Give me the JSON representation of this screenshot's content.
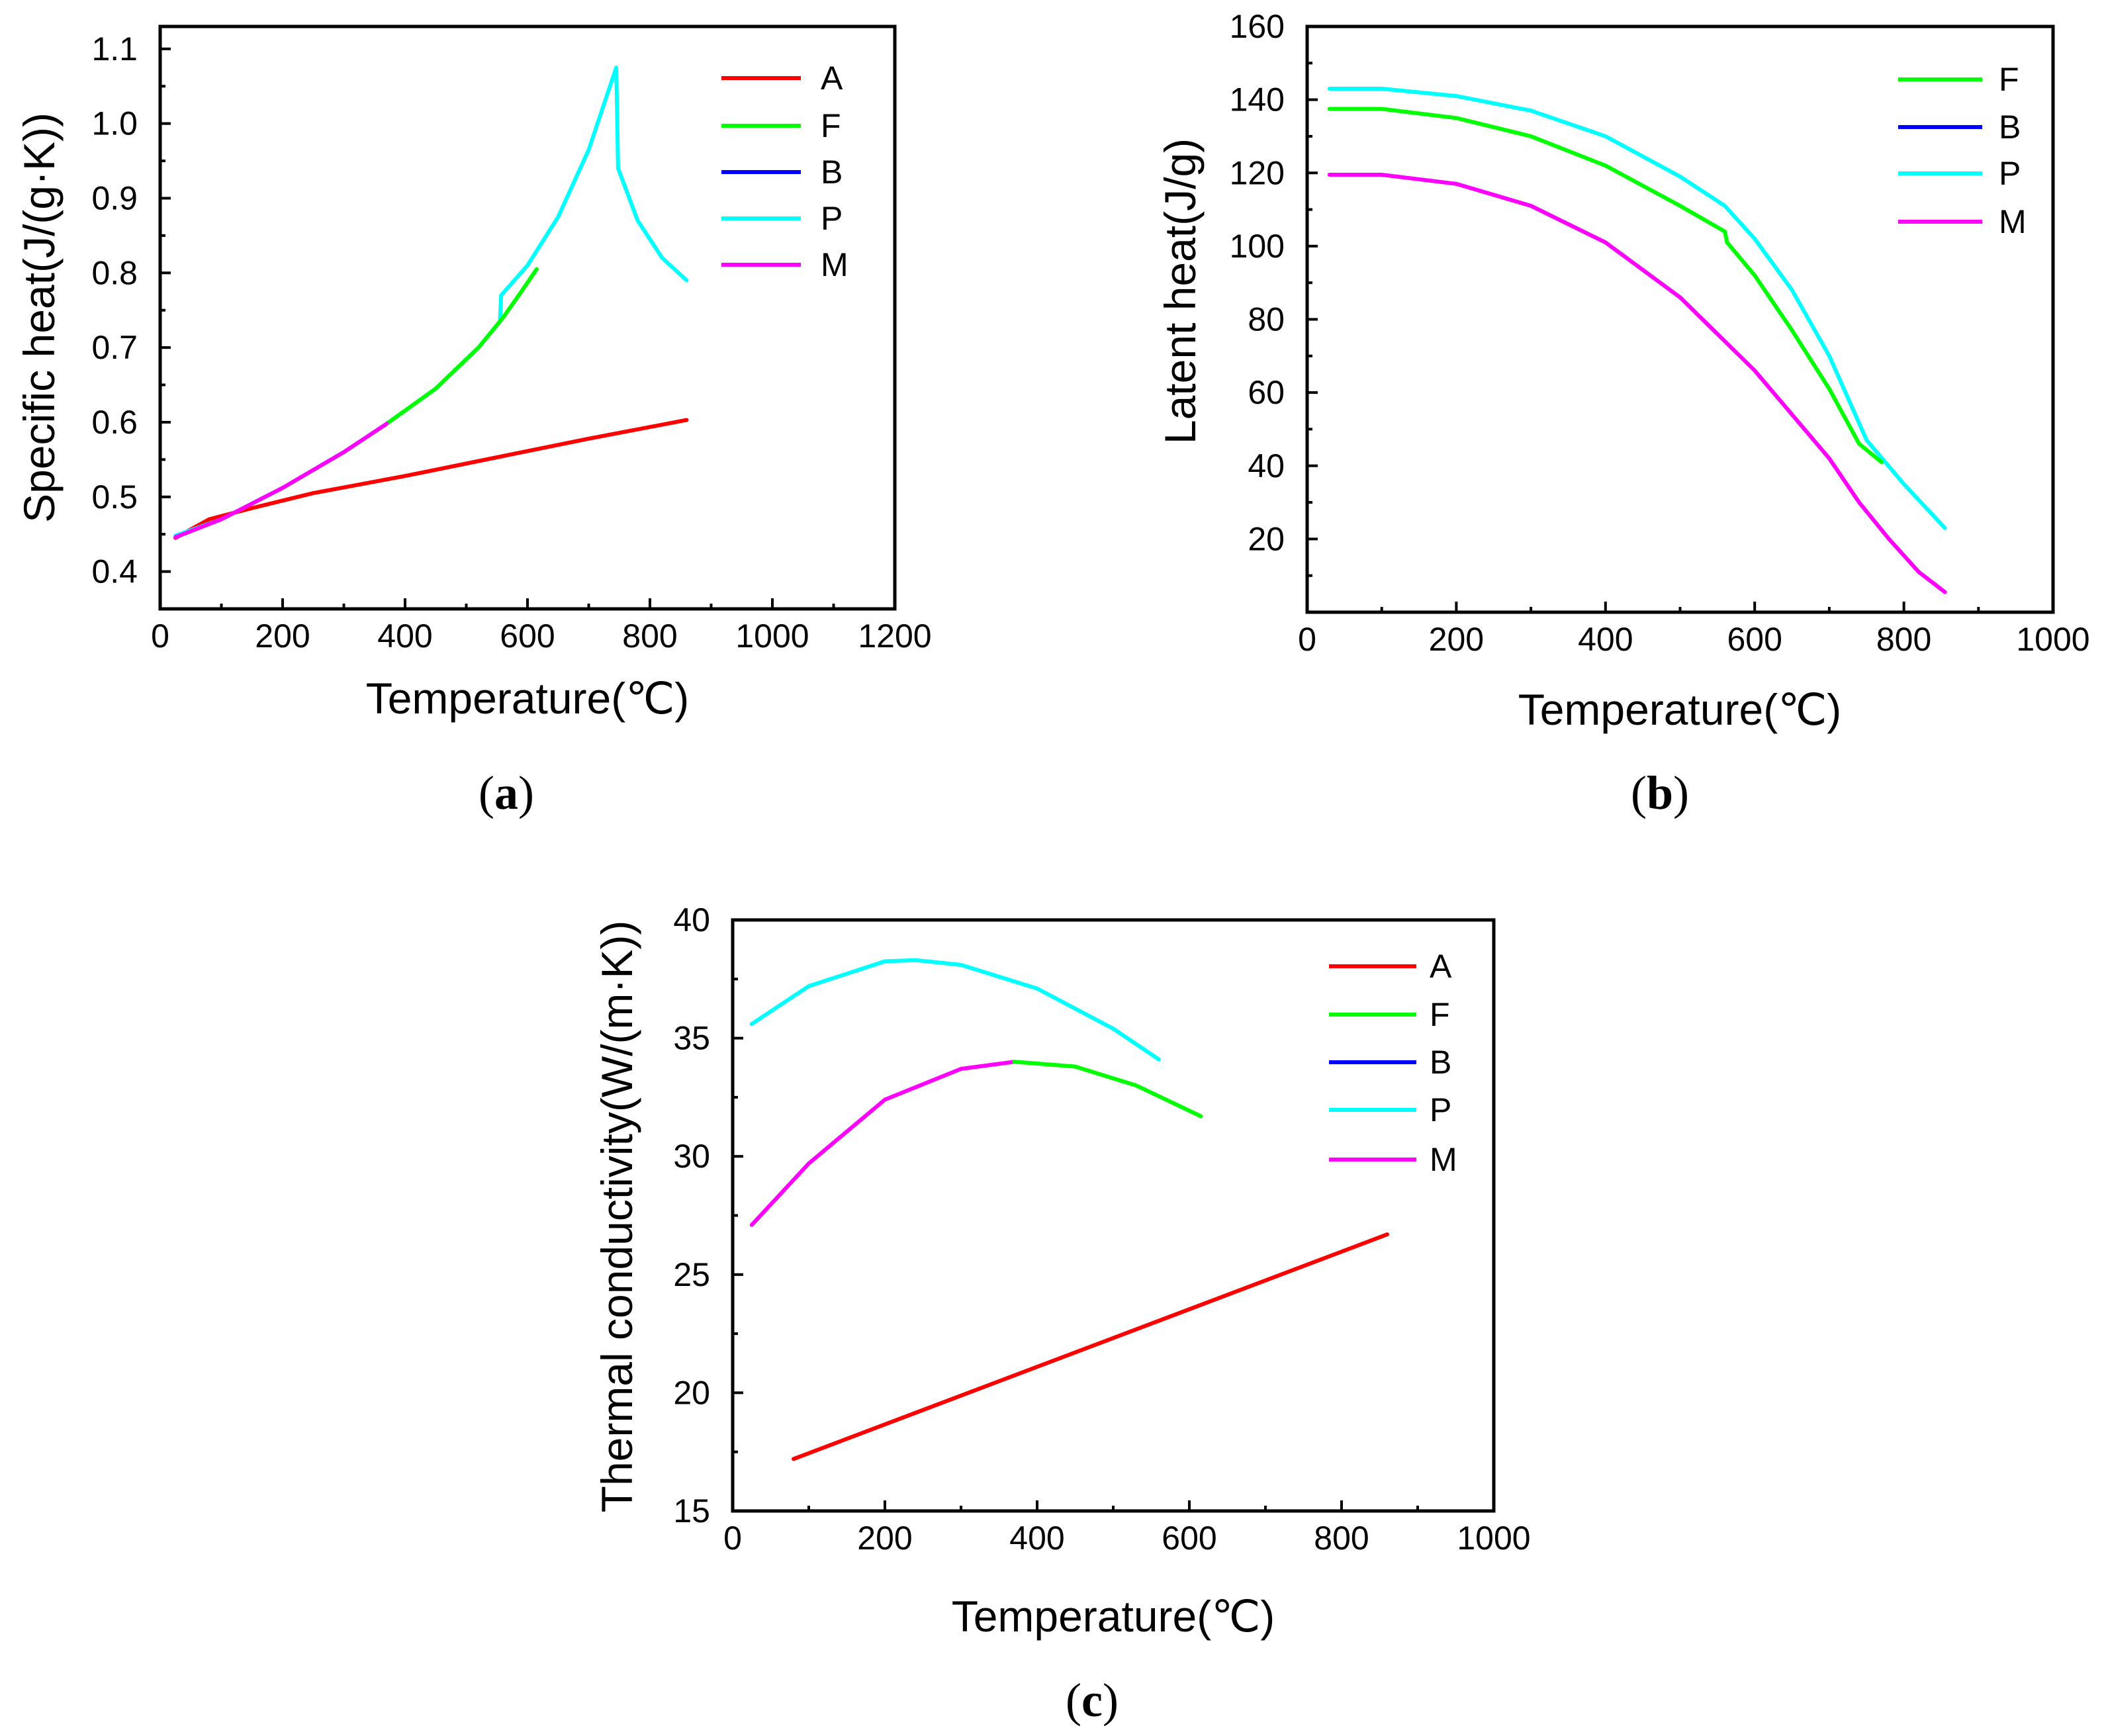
{
  "colors": {
    "A": "#ff0000",
    "F": "#00ff00",
    "B": "#0000ff",
    "P": "#00ffff",
    "M": "#ff00ff"
  },
  "chart_data": [
    {
      "id": "a",
      "panel_label": "a",
      "type": "line",
      "xlabel": "Temperature(℃)",
      "ylabel": "Specific heat(J/(g·K))",
      "xlim": [
        0,
        1200
      ],
      "ylim": [
        0.35,
        1.13
      ],
      "xticks": [
        0,
        200,
        400,
        600,
        800,
        1000,
        1200
      ],
      "yticks": [
        0.4,
        0.5,
        0.6,
        0.7,
        0.8,
        0.9,
        1.0,
        1.1
      ],
      "ytick_labels": [
        "0.4",
        "0.5",
        "0.6",
        "0.7",
        "0.8",
        "0.9",
        "1.0",
        "1.1"
      ],
      "legend_position": "top-right",
      "legend": [
        "A",
        "F",
        "B",
        "P",
        "M"
      ],
      "series": [
        {
          "name": "A",
          "points": [
            [
              25,
              0.445
            ],
            [
              80,
              0.47
            ],
            [
              150,
              0.485
            ],
            [
              250,
              0.505
            ],
            [
              400,
              0.528
            ],
            [
              550,
              0.553
            ],
            [
              700,
              0.578
            ],
            [
              860,
              0.603
            ]
          ]
        },
        {
          "name": "P",
          "points": [
            [
              25,
              0.448
            ],
            [
              100,
              0.47
            ],
            [
              200,
              0.512
            ],
            [
              300,
              0.56
            ],
            [
              370,
              0.598
            ],
            [
              450,
              0.645
            ],
            [
              520,
              0.7
            ],
            [
              555,
              0.735
            ],
            [
              557,
              0.77
            ],
            [
              600,
              0.81
            ],
            [
              650,
              0.875
            ],
            [
              700,
              0.965
            ],
            [
              745,
              1.075
            ],
            [
              748,
              0.94
            ],
            [
              780,
              0.87
            ],
            [
              820,
              0.82
            ],
            [
              860,
              0.79
            ]
          ]
        },
        {
          "name": "F",
          "points": [
            [
              370,
              0.598
            ],
            [
              450,
              0.645
            ],
            [
              520,
              0.7
            ],
            [
              560,
              0.74
            ],
            [
              590,
              0.775
            ],
            [
              615,
              0.805
            ]
          ]
        },
        {
          "name": "M",
          "points": [
            [
              25,
              0.446
            ],
            [
              100,
              0.47
            ],
            [
              200,
              0.512
            ],
            [
              300,
              0.56
            ],
            [
              370,
              0.598
            ]
          ]
        }
      ]
    },
    {
      "id": "b",
      "panel_label": "b",
      "type": "line",
      "xlabel": "Temperature(℃)",
      "ylabel": "Latent heat(J/g)",
      "xlim": [
        0,
        1000
      ],
      "ylim": [
        0,
        160
      ],
      "xticks": [
        0,
        200,
        400,
        600,
        800,
        1000
      ],
      "yticks": [
        20,
        40,
        60,
        80,
        100,
        120,
        140,
        160
      ],
      "ytick_labels": [
        "20",
        "40",
        "60",
        "80",
        "100",
        "120",
        "140",
        "160"
      ],
      "legend_position": "top-right",
      "legend": [
        "F",
        "B",
        "P",
        "M"
      ],
      "series": [
        {
          "name": "P",
          "points": [
            [
              30,
              143
            ],
            [
              100,
              143
            ],
            [
              200,
              141
            ],
            [
              300,
              137
            ],
            [
              400,
              130
            ],
            [
              500,
              119
            ],
            [
              560,
              111
            ],
            [
              600,
              102
            ],
            [
              650,
              88
            ],
            [
              700,
              70
            ],
            [
              750,
              47
            ],
            [
              800,
              35
            ],
            [
              855,
              23
            ]
          ]
        },
        {
          "name": "F",
          "points": [
            [
              30,
              137.5
            ],
            [
              100,
              137.5
            ],
            [
              200,
              135
            ],
            [
              300,
              130
            ],
            [
              400,
              122
            ],
            [
              500,
              111
            ],
            [
              560,
              104
            ],
            [
              563,
              101
            ],
            [
              600,
              92
            ],
            [
              650,
              77
            ],
            [
              700,
              61
            ],
            [
              740,
              46
            ],
            [
              770,
              41
            ]
          ]
        },
        {
          "name": "M",
          "points": [
            [
              30,
              119.5
            ],
            [
              100,
              119.5
            ],
            [
              200,
              117
            ],
            [
              300,
              111
            ],
            [
              400,
              101
            ],
            [
              500,
              86
            ],
            [
              600,
              66
            ],
            [
              700,
              42
            ],
            [
              740,
              30
            ],
            [
              780,
              20
            ],
            [
              820,
              11
            ],
            [
              855,
              5.5
            ]
          ]
        }
      ]
    },
    {
      "id": "c",
      "panel_label": "c",
      "type": "line",
      "xlabel": "Temperature(℃)",
      "ylabel": "Thermal conductivity(W/(m·K))",
      "xlim": [
        0,
        1000
      ],
      "ylim": [
        15,
        40
      ],
      "xticks": [
        0,
        200,
        400,
        600,
        800,
        1000
      ],
      "yticks": [
        15,
        20,
        25,
        30,
        35,
        40
      ],
      "ytick_labels": [
        "15",
        "20",
        "25",
        "30",
        "35",
        "40"
      ],
      "legend_position": "top-right",
      "legend": [
        "A",
        "F",
        "B",
        "P",
        "M"
      ],
      "series": [
        {
          "name": "P",
          "points": [
            [
              25,
              35.6
            ],
            [
              100,
              37.2
            ],
            [
              200,
              38.25
            ],
            [
              240,
              38.3
            ],
            [
              300,
              38.1
            ],
            [
              400,
              37.1
            ],
            [
              500,
              35.4
            ],
            [
              560,
              34.1
            ]
          ]
        },
        {
          "name": "M",
          "points": [
            [
              25,
              27.1
            ],
            [
              100,
              29.7
            ],
            [
              200,
              32.4
            ],
            [
              300,
              33.7
            ],
            [
              370,
              34.0
            ]
          ]
        },
        {
          "name": "F",
          "points": [
            [
              370,
              34.0
            ],
            [
              450,
              33.8
            ],
            [
              530,
              33.0
            ],
            [
              615,
              31.7
            ]
          ]
        },
        {
          "name": "A",
          "points": [
            [
              80,
              17.2
            ],
            [
              860,
              26.7
            ]
          ]
        }
      ]
    }
  ]
}
